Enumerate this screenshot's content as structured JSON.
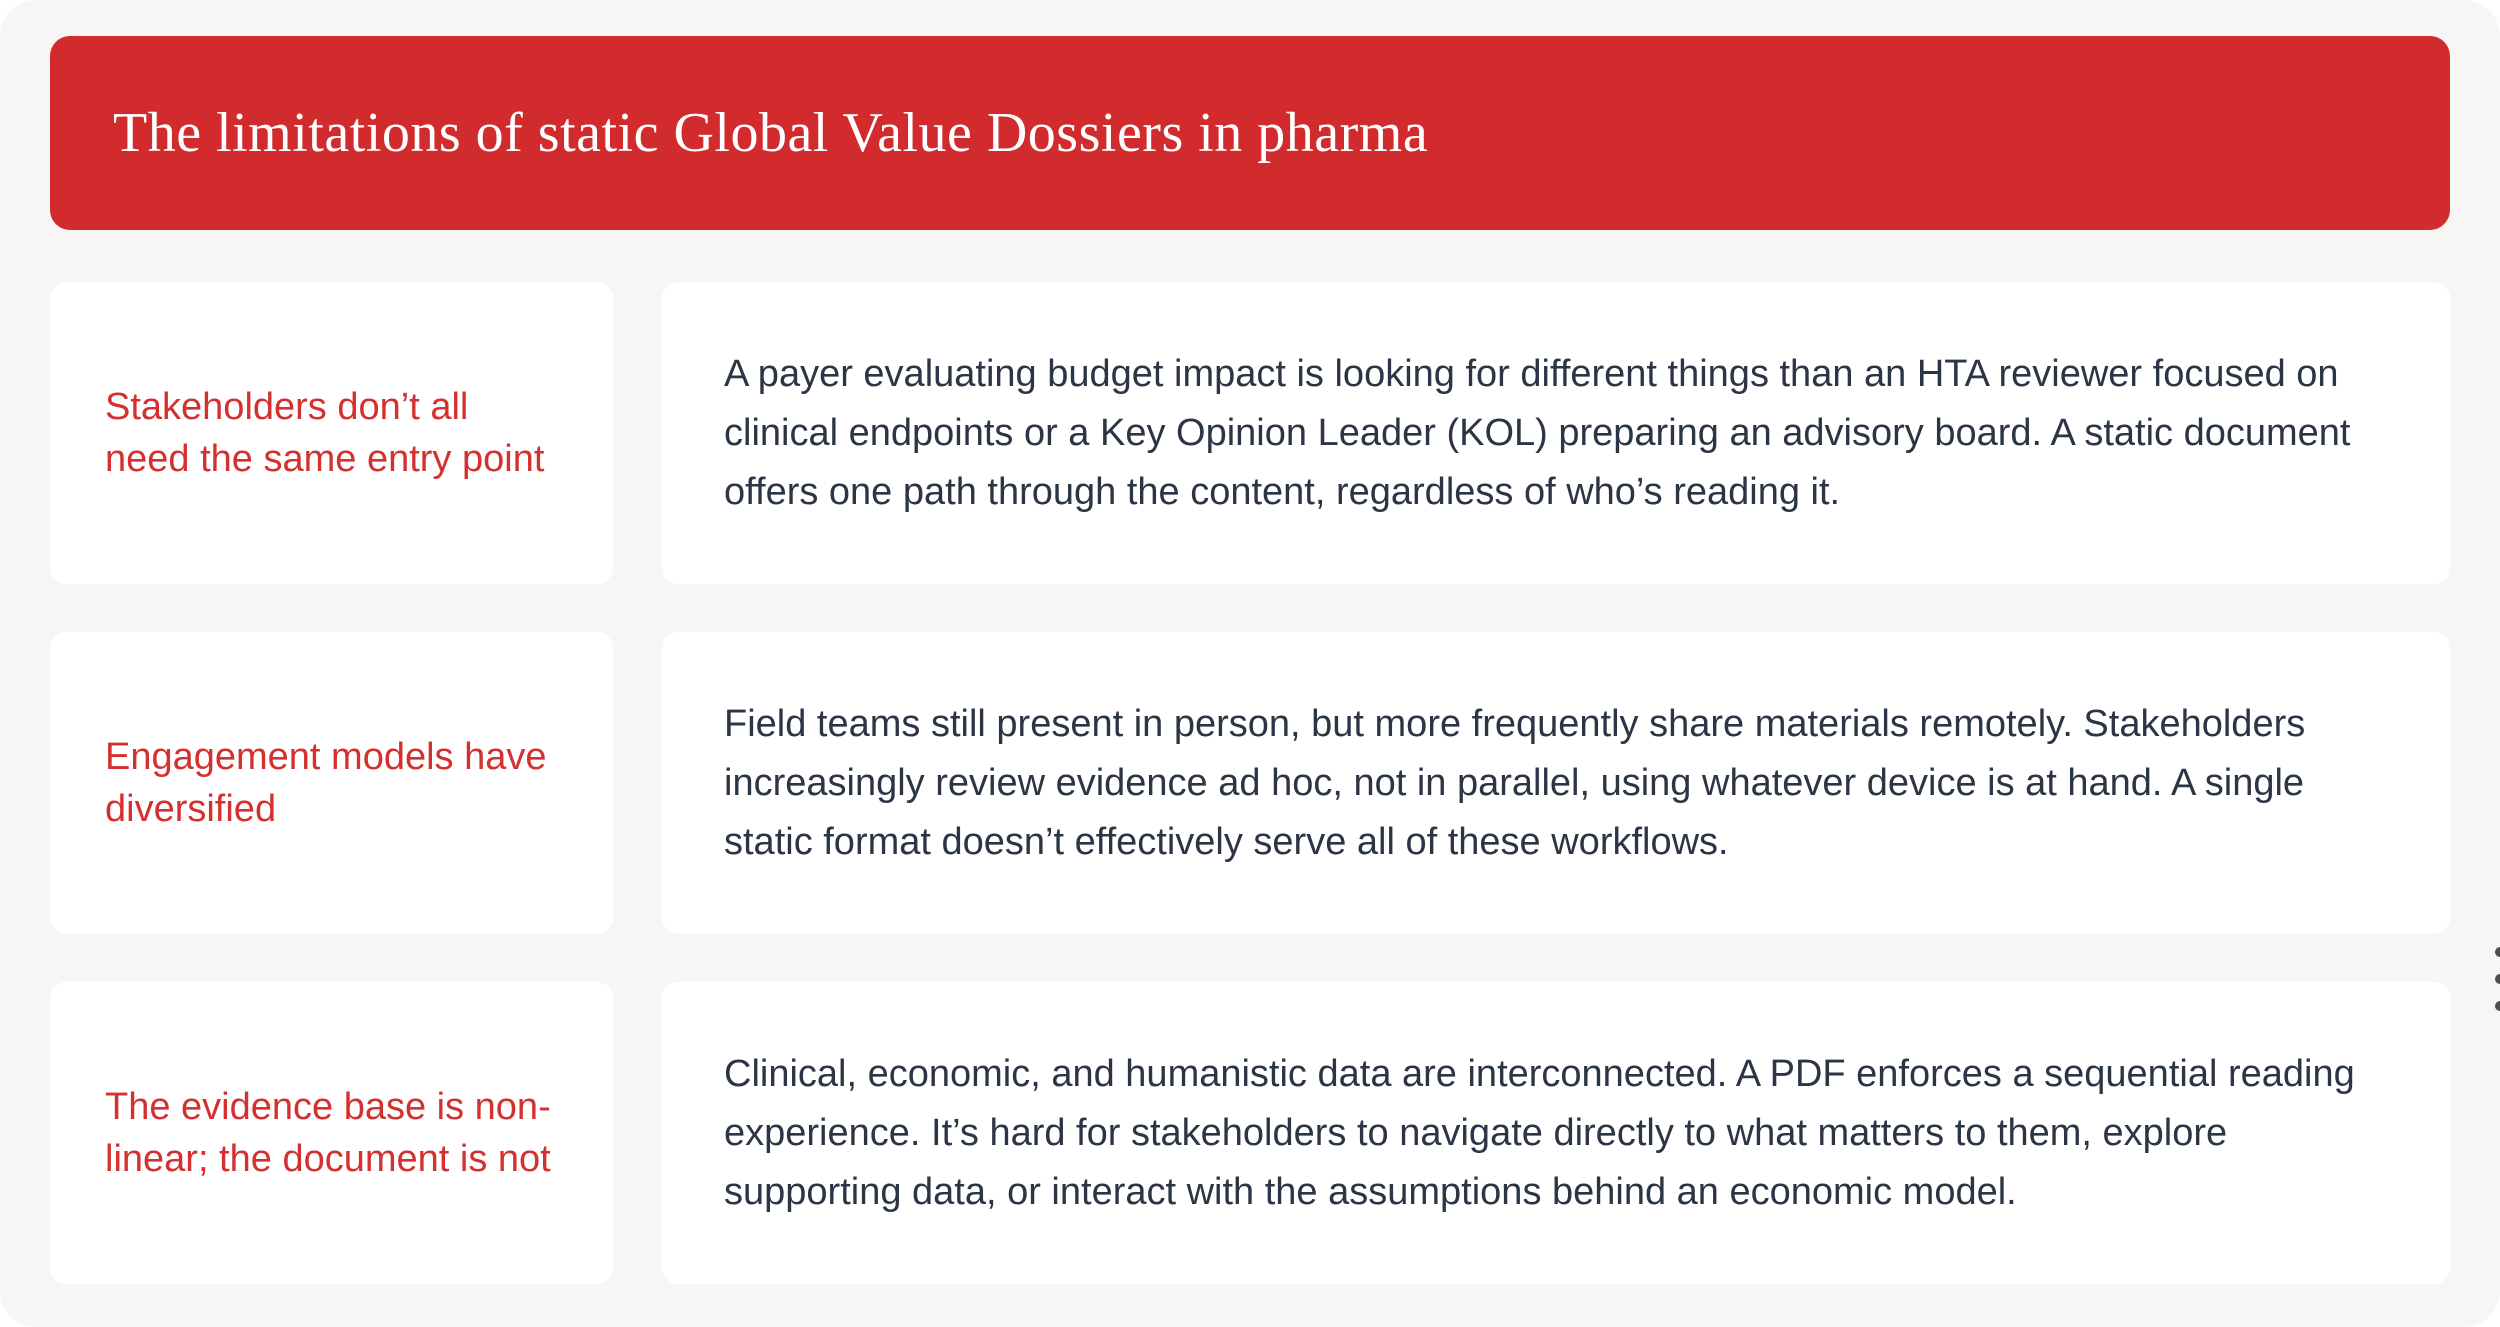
{
  "banner": {
    "title": "The limitations of static Global Value Dossiers in pharma"
  },
  "rows": [
    {
      "heading": "Stakeholders don’t all need the same entry point",
      "body": "A payer evaluating budget impact is looking for different things than an HTA reviewer focused on clinical endpoints or a Key Opinion Leader (KOL) preparing an advisory board. A static document offers one path through the content, regardless of who’s reading it."
    },
    {
      "heading": "Engagement models have diversified",
      "body": "Field teams still present in person, but more frequently share materials remotely. Stakeholders increasingly review evidence ad hoc, not in parallel, using whatever device is at hand. A single static format doesn’t effectively serve all of these workflows."
    },
    {
      "heading": "The evidence base is non-linear; the document is not",
      "body": "Clinical, economic, and humanistic data are interconnected. A PDF enforces a sequential reading experience. It’s hard for stakeholders to navigate directly to what matters to them, explore supporting data, or interact with the assumptions behind an economic model."
    }
  ],
  "icons": {
    "kebab_menu": "vertical-ellipsis"
  },
  "colors": {
    "surface_background": "#f8f6f4",
    "banner_background": "#d22b2e",
    "banner_text": "#ffffff",
    "heading_red": "#d3302f",
    "body_text": "#2c3545",
    "kebab_dots": "#4d4d4d"
  }
}
